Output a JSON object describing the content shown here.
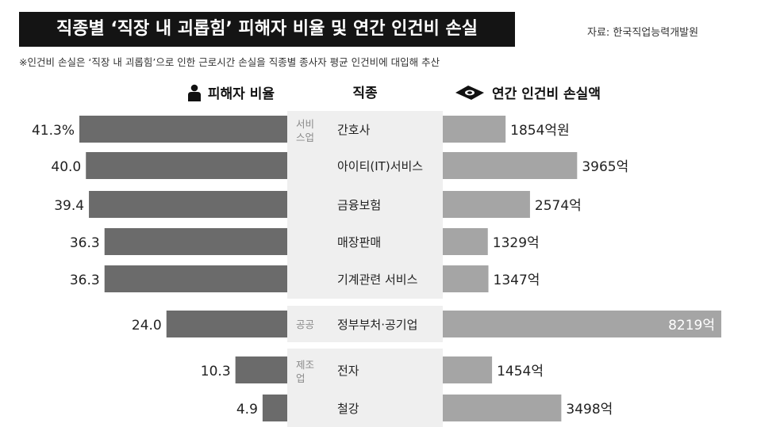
{
  "title": "직종별 ‘직장 내 괴롭힘’ 피해자 비율 및 연간 인건비 손실",
  "source": "자료: 한국직업능력개발원",
  "note": "※인건비 손실은 ‘직장 내 괴롭힘’으로 인한 근로시간 손실을 직종별 종사자 평균 인건비에 대입해 추산",
  "headers": {
    "left": "피해자 비율",
    "middle": "직종",
    "right": "연간 인건비 손실액"
  },
  "icons": {
    "left": "person-icon",
    "right": "money-bill-icon"
  },
  "colors": {
    "bar": "#6b6b6b",
    "right_bar": "#a5a5a5",
    "band": "#efefef",
    "title_bg": "#141414"
  },
  "chart_data": {
    "type": "bar",
    "categories": [
      "간호사",
      "아이티(IT)서비스",
      "금융보험",
      "매장판매",
      "기계관련 서비스",
      "정부부처·공기업",
      "전자",
      "철강"
    ],
    "groups": [
      {
        "label": "서비스업",
        "count": 5
      },
      {
        "label": "공공",
        "count": 1
      },
      {
        "label": "제조업",
        "count": 2
      }
    ],
    "series": [
      {
        "name": "피해자 비율",
        "values": [
          41.3,
          40.0,
          39.4,
          36.3,
          36.3,
          24.0,
          10.3,
          4.9
        ],
        "labels": [
          "41.3%",
          "40.0",
          "39.4",
          "36.3",
          "36.3",
          "24.0",
          "10.3",
          "4.9"
        ]
      },
      {
        "name": "연간 인건비 손실액",
        "values": [
          1854,
          3965,
          2574,
          1329,
          1347,
          8219,
          1454,
          3498
        ],
        "labels": [
          "1854억원",
          "3965억",
          "2574억",
          "1329억",
          "1347억",
          "8219억",
          "1454억",
          "3498억"
        ]
      }
    ]
  }
}
